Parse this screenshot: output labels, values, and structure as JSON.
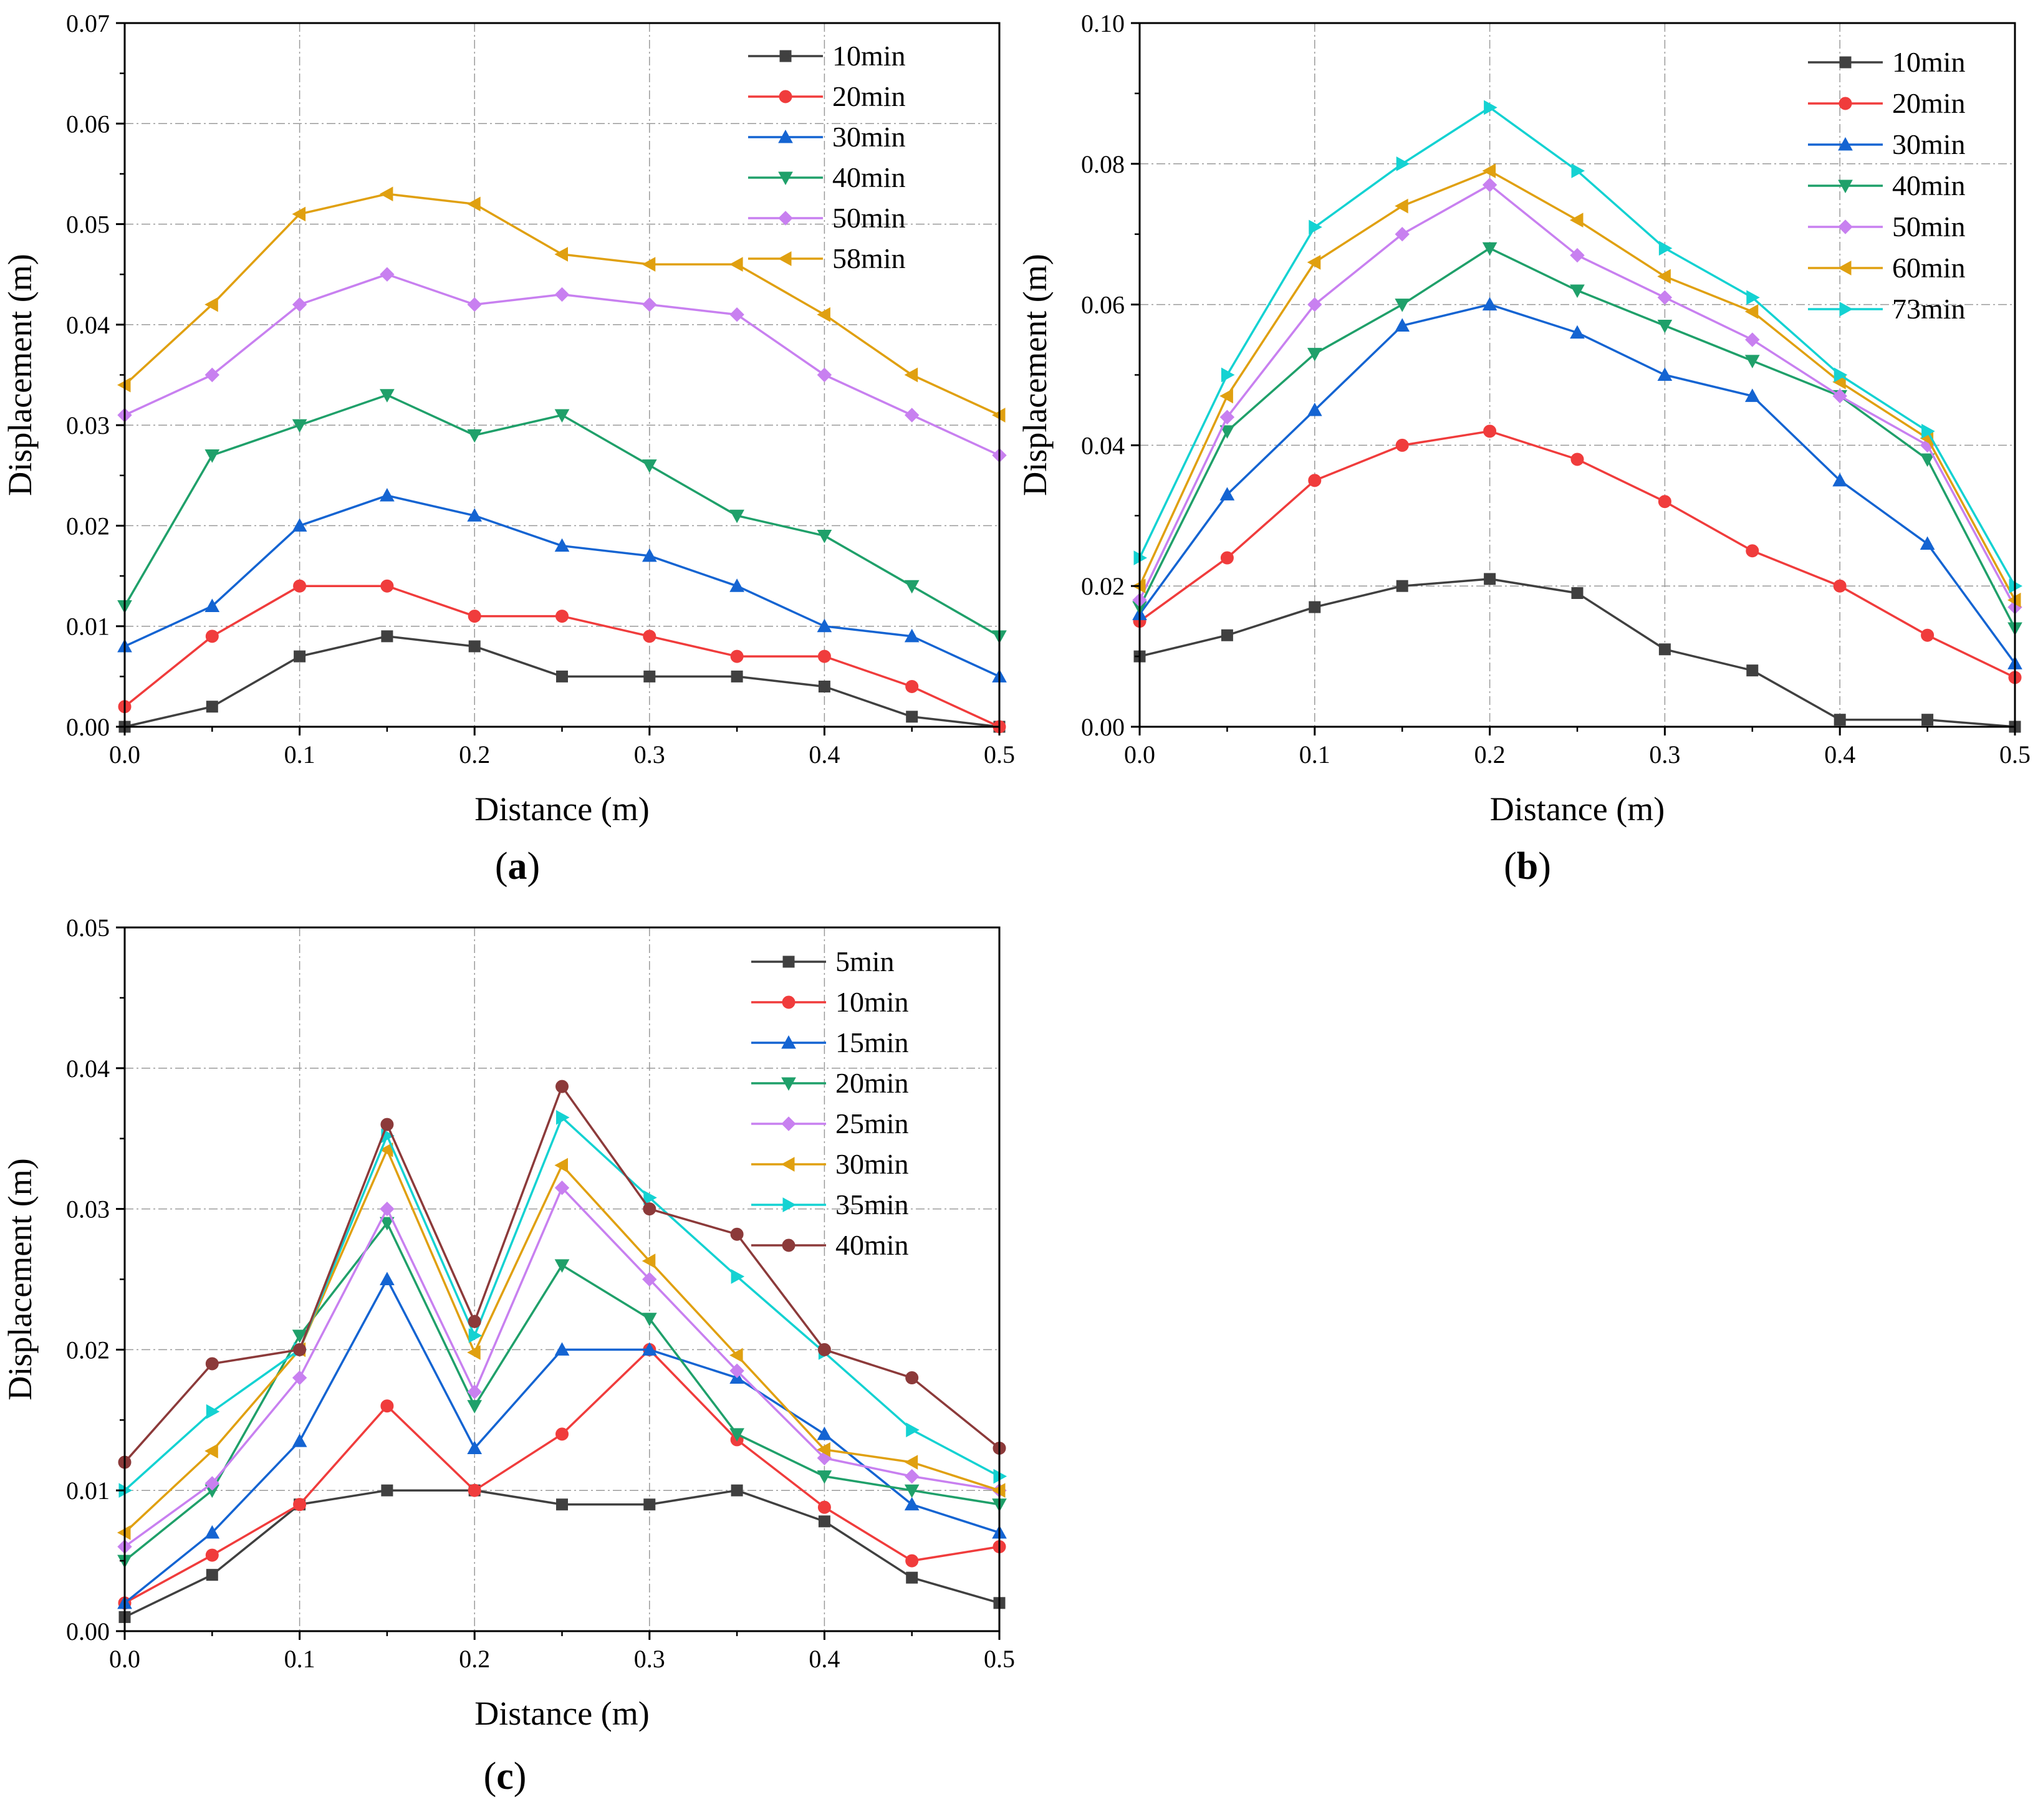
{
  "colors": {
    "s1": "#404040",
    "s2": "#f03c3c",
    "s3": "#1464d2",
    "s4": "#1fa06a",
    "s5": "#c880f0",
    "s6": "#e0a010",
    "s7": "#14d2d2",
    "s8": "#8c3a3a"
  },
  "chart_data": [
    {
      "id": "a",
      "type": "line",
      "panel_label": "a",
      "xlabel": "Distance (m)",
      "ylabel": "Displacement (m)",
      "xlim": [
        0,
        0.5
      ],
      "ylim": [
        0,
        0.07
      ],
      "xticks": [
        0.0,
        0.1,
        0.2,
        0.3,
        0.4,
        0.5
      ],
      "xtick_labels": [
        "0.0",
        "0.1",
        "0.2",
        "0.3",
        "0.4",
        "0.5"
      ],
      "yticks": [
        0,
        0.01,
        0.02,
        0.03,
        0.04,
        0.05,
        0.06,
        0.07
      ],
      "ytick_labels": [
        "0.00",
        "0.01",
        "0.02",
        "0.03",
        "0.04",
        "0.05",
        "0.06",
        "0.07"
      ],
      "grid": true,
      "legend_position": "top-right",
      "x": [
        0,
        0.05,
        0.1,
        0.15,
        0.2,
        0.25,
        0.3,
        0.35,
        0.4,
        0.45,
        0.5
      ],
      "series": [
        {
          "name": "10min",
          "marker": "square",
          "color": "s1",
          "values": [
            0,
            0.002,
            0.007,
            0.009,
            0.008,
            0.005,
            0.005,
            0.005,
            0.004,
            0.001,
            0
          ]
        },
        {
          "name": "20min",
          "marker": "circle",
          "color": "s2",
          "values": [
            0.002,
            0.009,
            0.014,
            0.014,
            0.011,
            0.011,
            0.009,
            0.007,
            0.007,
            0.004,
            0
          ]
        },
        {
          "name": "30min",
          "marker": "triangle-up",
          "color": "s3",
          "values": [
            0.008,
            0.012,
            0.02,
            0.023,
            0.021,
            0.018,
            0.017,
            0.014,
            0.01,
            0.009,
            0.005
          ]
        },
        {
          "name": "40min",
          "marker": "triangle-down",
          "color": "s4",
          "values": [
            0.012,
            0.027,
            0.03,
            0.033,
            0.029,
            0.031,
            0.026,
            0.021,
            0.019,
            0.014,
            0.009
          ]
        },
        {
          "name": "50min",
          "marker": "diamond",
          "color": "s5",
          "values": [
            0.031,
            0.035,
            0.042,
            0.045,
            0.042,
            0.043,
            0.042,
            0.041,
            0.035,
            0.031,
            0.027
          ]
        },
        {
          "name": "58min",
          "marker": "triangle-left",
          "color": "s6",
          "values": [
            0.034,
            0.042,
            0.051,
            0.053,
            0.052,
            0.047,
            0.046,
            0.046,
            0.041,
            0.035,
            0.031
          ]
        }
      ]
    },
    {
      "id": "b",
      "type": "line",
      "panel_label": "b",
      "xlabel": "Distance (m)",
      "ylabel": "Displacement (m)",
      "xlim": [
        0,
        0.5
      ],
      "ylim": [
        0,
        0.1
      ],
      "xticks": [
        0.0,
        0.1,
        0.2,
        0.3,
        0.4,
        0.5
      ],
      "xtick_labels": [
        "0.0",
        "0.1",
        "0.2",
        "0.3",
        "0.4",
        "0.5"
      ],
      "yticks": [
        0,
        0.02,
        0.04,
        0.06,
        0.08,
        0.1
      ],
      "ytick_labels": [
        "0.00",
        "0.02",
        "0.04",
        "0.06",
        "0.08",
        "0.10"
      ],
      "grid": true,
      "legend_position": "top-right",
      "x": [
        0,
        0.05,
        0.1,
        0.15,
        0.2,
        0.25,
        0.3,
        0.35,
        0.4,
        0.45,
        0.5
      ],
      "series": [
        {
          "name": "10min",
          "marker": "square",
          "color": "s1",
          "values": [
            0.01,
            0.013,
            0.017,
            0.02,
            0.021,
            0.019,
            0.011,
            0.008,
            0.001,
            0.001,
            0
          ]
        },
        {
          "name": "20min",
          "marker": "circle",
          "color": "s2",
          "values": [
            0.015,
            0.024,
            0.035,
            0.04,
            0.042,
            0.038,
            0.032,
            0.025,
            0.02,
            0.013,
            0.007
          ]
        },
        {
          "name": "30min",
          "marker": "triangle-up",
          "color": "s3",
          "values": [
            0.016,
            0.033,
            0.045,
            0.057,
            0.06,
            0.056,
            0.05,
            0.047,
            0.035,
            0.026,
            0.009
          ]
        },
        {
          "name": "40min",
          "marker": "triangle-down",
          "color": "s4",
          "values": [
            0.017,
            0.042,
            0.053,
            0.06,
            0.068,
            0.062,
            0.057,
            0.052,
            0.047,
            0.038,
            0.014
          ]
        },
        {
          "name": "50min",
          "marker": "diamond",
          "color": "s5",
          "values": [
            0.018,
            0.044,
            0.06,
            0.07,
            0.077,
            0.067,
            0.061,
            0.055,
            0.047,
            0.04,
            0.017
          ]
        },
        {
          "name": "60min",
          "marker": "triangle-left",
          "color": "s6",
          "values": [
            0.02,
            0.047,
            0.066,
            0.074,
            0.079,
            0.072,
            0.064,
            0.059,
            0.049,
            0.041,
            0.018
          ]
        },
        {
          "name": "73min",
          "marker": "triangle-right",
          "color": "s7",
          "values": [
            0.024,
            0.05,
            0.071,
            0.08,
            0.088,
            0.079,
            0.068,
            0.061,
            0.05,
            0.042,
            0.02
          ]
        }
      ]
    },
    {
      "id": "c",
      "type": "line",
      "panel_label": "c",
      "xlabel": "Distance (m)",
      "ylabel": "Displacement (m)",
      "xlim": [
        0,
        0.5
      ],
      "ylim": [
        0,
        0.05
      ],
      "xticks": [
        0.0,
        0.1,
        0.2,
        0.3,
        0.4,
        0.5
      ],
      "xtick_labels": [
        "0.0",
        "0.1",
        "0.2",
        "0.3",
        "0.4",
        "0.5"
      ],
      "yticks": [
        0,
        0.01,
        0.02,
        0.03,
        0.04,
        0.05
      ],
      "ytick_labels": [
        "0.00",
        "0.01",
        "0.02",
        "0.03",
        "0.04",
        "0.05"
      ],
      "grid": true,
      "legend_position": "top-right",
      "x": [
        0,
        0.05,
        0.1,
        0.15,
        0.2,
        0.25,
        0.3,
        0.35,
        0.4,
        0.45,
        0.5
      ],
      "series": [
        {
          "name": "5min",
          "marker": "square",
          "color": "s1",
          "values": [
            0.001,
            0.004,
            0.009,
            0.01,
            0.01,
            0.009,
            0.009,
            0.01,
            0.0078,
            0.0038,
            0.002
          ]
        },
        {
          "name": "10min",
          "marker": "circle",
          "color": "s2",
          "values": [
            0.002,
            0.0054,
            0.009,
            0.016,
            0.01,
            0.014,
            0.02,
            0.0136,
            0.0088,
            0.005,
            0.006
          ]
        },
        {
          "name": "15min",
          "marker": "triangle-up",
          "color": "s3",
          "values": [
            0.002,
            0.007,
            0.0135,
            0.025,
            0.013,
            0.02,
            0.02,
            0.018,
            0.014,
            0.009,
            0.007
          ]
        },
        {
          "name": "20min",
          "marker": "triangle-down",
          "color": "s4",
          "values": [
            0.005,
            0.01,
            0.021,
            0.029,
            0.016,
            0.026,
            0.0222,
            0.014,
            0.011,
            0.01,
            0.009
          ]
        },
        {
          "name": "25min",
          "marker": "diamond",
          "color": "s5",
          "values": [
            0.006,
            0.0105,
            0.018,
            0.03,
            0.017,
            0.0315,
            0.025,
            0.0185,
            0.0123,
            0.011,
            0.01
          ]
        },
        {
          "name": "30min",
          "marker": "triangle-left",
          "color": "s6",
          "values": [
            0.007,
            0.0128,
            0.02,
            0.0342,
            0.0198,
            0.0331,
            0.0263,
            0.0196,
            0.0129,
            0.012,
            0.01
          ]
        },
        {
          "name": "35min",
          "marker": "triangle-right",
          "color": "s7",
          "values": [
            0.01,
            0.0156,
            0.02,
            0.0352,
            0.021,
            0.0365,
            0.0308,
            0.0252,
            0.0198,
            0.0143,
            0.011
          ]
        },
        {
          "name": "40min",
          "marker": "circle",
          "color": "s8",
          "values": [
            0.012,
            0.019,
            0.02,
            0.036,
            0.022,
            0.0387,
            0.03,
            0.0282,
            0.02,
            0.018,
            0.013
          ]
        }
      ]
    }
  ]
}
